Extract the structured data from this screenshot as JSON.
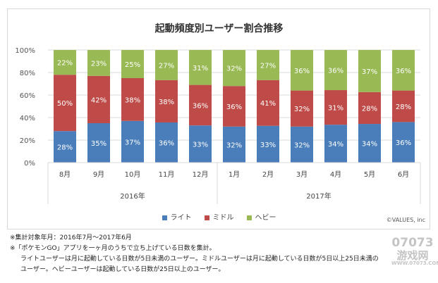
{
  "chart_data": {
    "type": "bar",
    "stacked": true,
    "title": "起動頻度別ユーザー割合推移",
    "categories": [
      "8月",
      "9月",
      "10月",
      "11月",
      "12月",
      "1月",
      "2月",
      "3月",
      "4月",
      "5月",
      "6月"
    ],
    "year_groups": [
      {
        "label": "2016年",
        "count": 5
      },
      {
        "label": "2017年",
        "count": 6
      }
    ],
    "ylim": [
      0,
      100
    ],
    "yticks": [
      "0%",
      "20%",
      "40%",
      "60%",
      "80%",
      "100%"
    ],
    "grid": true,
    "legend_position": "bottom",
    "series": [
      {
        "name": "ライト",
        "color": "#4a7ebb",
        "values": [
          28,
          35,
          37,
          36,
          33,
          32,
          33,
          32,
          34,
          34,
          36
        ]
      },
      {
        "name": "ミドル",
        "color": "#be4b48",
        "values": [
          50,
          42,
          38,
          38,
          36,
          36,
          41,
          32,
          31,
          28,
          28
        ]
      },
      {
        "name": "ヘビー",
        "color": "#98b954",
        "values": [
          22,
          23,
          25,
          27,
          31,
          32,
          27,
          36,
          36,
          37,
          36
        ]
      }
    ]
  },
  "credit": "©VALUES, inc",
  "notes": [
    "※集計対象年月：2016年7月～2017年6月",
    "※「ポケモンGO」アプリを一ヶ月のうちで立ち上げている日数を集計。",
    "ライトユーザーは月に起動している日数が5日未満のユーザー。ミドルユーザーは月に起動している日数が5日以上25日未満の",
    "ユーザー。ヘビーユーザーは起動している日数が25日以上のユーザー。"
  ],
  "watermark": {
    "line1": "07073",
    "line2": "游戏网",
    "line3": "WWW.07073.COM"
  }
}
